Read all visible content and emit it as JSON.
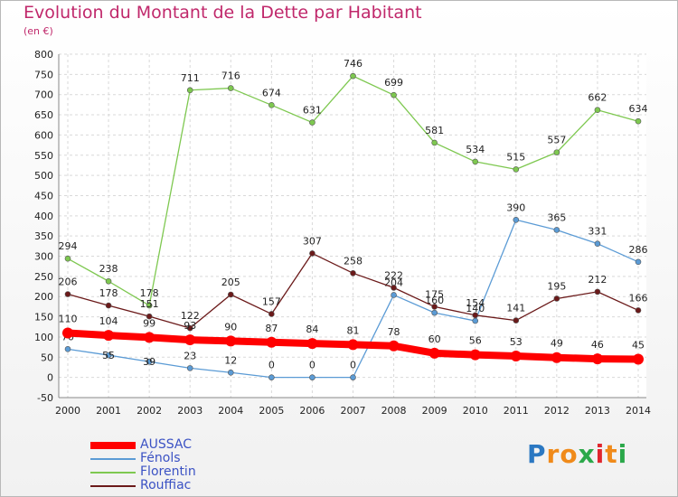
{
  "title": "Evolution du Montant de la Dette par Habitant",
  "subtitle": "(en €)",
  "brand": {
    "letters": [
      "P",
      "r",
      "o",
      "x",
      "i",
      "t",
      "i"
    ],
    "colors": [
      "#2b78c2",
      "#f08a1a",
      "#f08a1a",
      "#2ba84a",
      "#e0262e",
      "#f08a1a",
      "#2ba84a"
    ]
  },
  "chart_data": {
    "type": "line",
    "title": "Evolution du Montant de la Dette par Habitant",
    "ylabel": "(en €)",
    "xlabel": "",
    "x": [
      "2000",
      "2001",
      "2002",
      "2003",
      "2004",
      "2005",
      "2006",
      "2007",
      "2008",
      "2009",
      "2010",
      "2011",
      "2012",
      "2013",
      "2014"
    ],
    "ylim": [
      -50,
      800
    ],
    "yticks": [
      "-50",
      "0",
      "50",
      "100",
      "150",
      "200",
      "250",
      "300",
      "350",
      "400",
      "450",
      "500",
      "550",
      "600",
      "650",
      "700",
      "750",
      "800"
    ],
    "legend_position": "bottom-left",
    "grid": true,
    "series": [
      {
        "name": "Fénols",
        "color": "#5b9bd5",
        "values": [
          70,
          55,
          39,
          23,
          12,
          0,
          0,
          0,
          204,
          160,
          140,
          390,
          365,
          331,
          286
        ],
        "labels": [
          "70",
          "55",
          "39",
          "23",
          "12",
          "0",
          "0",
          "0",
          "204",
          "160",
          "140",
          "390",
          "365",
          "331",
          "286"
        ]
      },
      {
        "name": "Florentin",
        "color": "#7ec850",
        "values": [
          294,
          238,
          178,
          711,
          716,
          674,
          631,
          746,
          699,
          581,
          534,
          515,
          557,
          662,
          634
        ],
        "labels": [
          "294",
          "238",
          "178",
          "711",
          "716",
          "674",
          "631",
          "746",
          "699",
          "581",
          "534",
          "515",
          "557",
          "662",
          "634"
        ]
      },
      {
        "name": "Rouffiac",
        "color": "#6b1a1a",
        "values": [
          206,
          178,
          151,
          122,
          205,
          157,
          307,
          258,
          222,
          175,
          154,
          141,
          195,
          212,
          166
        ],
        "labels": [
          "206",
          "178",
          "151",
          "122",
          "205",
          "157",
          "307",
          "258",
          "222",
          "175",
          "154",
          "141",
          "195",
          "212",
          "166"
        ]
      },
      {
        "name": "AUSSAC",
        "color": "#ff0000",
        "values": [
          110,
          104,
          99,
          93,
          90,
          87,
          84,
          81,
          78,
          60,
          56,
          53,
          49,
          46,
          45
        ],
        "labels": [
          "110",
          "104",
          "99",
          "93",
          "90",
          "87",
          "84",
          "81",
          "78",
          "60",
          "56",
          "53",
          "49",
          "46",
          "45"
        ]
      }
    ],
    "legend": [
      "AUSSAC",
      "Fénols",
      "Florentin",
      "Rouffiac"
    ]
  }
}
